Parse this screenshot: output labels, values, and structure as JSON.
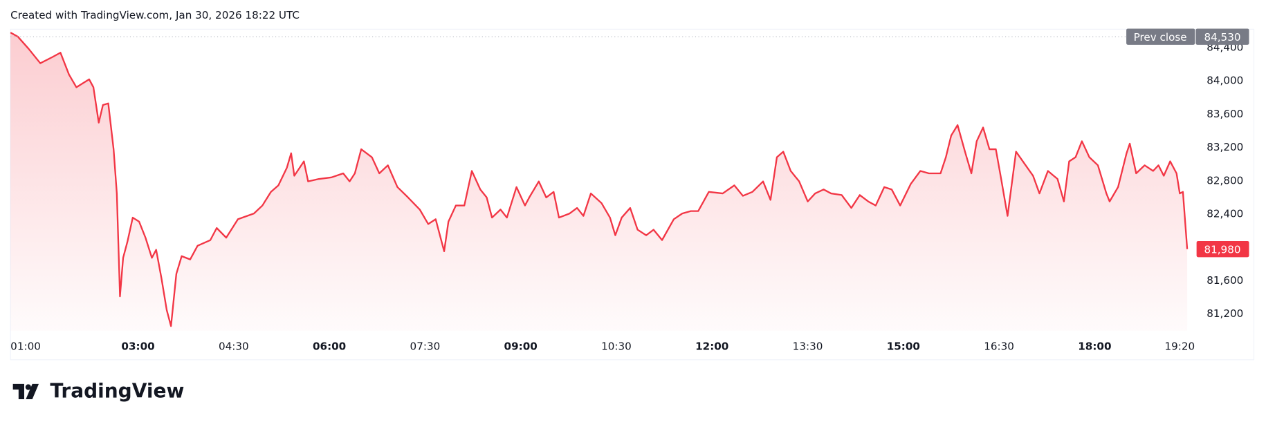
{
  "header": {
    "caption": "Created with TradingView.com, Jan 30, 2026 18:22 UTC"
  },
  "footer": {
    "brand": "TradingView"
  },
  "chart_data": {
    "type": "area",
    "color": "#f23645",
    "x": [
      "01:00",
      "01:07",
      "01:17",
      "01:28",
      "01:40",
      "01:47",
      "01:55",
      "02:02",
      "02:14",
      "02:18",
      "02:23",
      "02:27",
      "02:32",
      "02:37",
      "02:40",
      "02:43",
      "02:46",
      "02:50",
      "02:55",
      "03:01",
      "03:07",
      "03:13",
      "03:17",
      "03:22",
      "03:27",
      "03:31",
      "03:36",
      "03:41",
      "03:49",
      "03:56",
      "04:08",
      "04:14",
      "04:23",
      "04:34",
      "04:49",
      "04:57",
      "05:05",
      "05:12",
      "05:20",
      "05:24",
      "05:27",
      "05:36",
      "05:40",
      "05:50",
      "06:02",
      "06:13",
      "06:19",
      "06:24",
      "06:30",
      "06:40",
      "06:47",
      "06:55",
      "07:04",
      "07:14",
      "07:25",
      "07:33",
      "07:40",
      "07:48",
      "07:52",
      "07:59",
      "08:07",
      "08:14",
      "08:22",
      "08:28",
      "08:33",
      "08:41",
      "08:47",
      "08:56",
      "09:04",
      "09:08",
      "09:17",
      "09:24",
      "09:31",
      "09:36",
      "09:46",
      "09:53",
      "09:59",
      "10:06",
      "10:16",
      "10:24",
      "10:29",
      "10:35",
      "10:43",
      "10:50",
      "10:58",
      "11:05",
      "11:13",
      "11:24",
      "11:32",
      "11:40",
      "11:47",
      "11:57",
      "12:10",
      "12:21",
      "12:29",
      "12:38",
      "12:48",
      "12:55",
      "13:01",
      "13:07",
      "13:14",
      "13:22",
      "13:30",
      "13:37",
      "13:45",
      "13:52",
      "14:02",
      "14:11",
      "14:19",
      "14:27",
      "14:34",
      "14:42",
      "14:49",
      "14:57",
      "15:07",
      "15:16",
      "15:24",
      "15:35",
      "15:40",
      "15:45",
      "15:51",
      "15:58",
      "16:04",
      "16:09",
      "16:15",
      "16:21",
      "16:27",
      "16:32",
      "16:38",
      "16:46",
      "16:55",
      "17:02",
      "17:08",
      "17:16",
      "17:25",
      "17:31",
      "17:36",
      "17:42",
      "17:48",
      "17:55",
      "18:03",
      "18:11",
      "18:14",
      "18:22",
      "18:30",
      "18:33",
      "18:39",
      "18:47",
      "18:55",
      "19:00",
      "19:05",
      "19:11",
      "19:17",
      "19:20",
      "19:23",
      "19:27"
    ],
    "series": [
      {
        "values": [
          84580,
          84530,
          84386,
          84212,
          84290,
          84338,
          84077,
          83923,
          84019,
          83923,
          83498,
          83710,
          83730,
          83179,
          82648,
          81412,
          81875,
          82068,
          82358,
          82310,
          82117,
          81875,
          81972,
          81634,
          81248,
          81055,
          81682,
          81895,
          81856,
          82020,
          82088,
          82233,
          82117,
          82339,
          82407,
          82503,
          82667,
          82745,
          82957,
          83131,
          82860,
          83034,
          82793,
          82822,
          82841,
          82889,
          82793,
          82889,
          83179,
          83083,
          82889,
          82986,
          82725,
          82600,
          82455,
          82281,
          82339,
          81953,
          82310,
          82503,
          82503,
          82918,
          82696,
          82600,
          82358,
          82455,
          82358,
          82725,
          82503,
          82600,
          82793,
          82600,
          82667,
          82358,
          82407,
          82474,
          82378,
          82648,
          82532,
          82358,
          82146,
          82358,
          82474,
          82213,
          82146,
          82213,
          82088,
          82339,
          82407,
          82436,
          82436,
          82667,
          82648,
          82745,
          82619,
          82667,
          82793,
          82571,
          83083,
          83150,
          82918,
          82793,
          82552,
          82648,
          82696,
          82648,
          82629,
          82474,
          82629,
          82552,
          82503,
          82725,
          82696,
          82503,
          82764,
          82918,
          82889,
          82889,
          83083,
          83343,
          83469,
          83150,
          82889,
          83276,
          83440,
          83179,
          83179,
          82822,
          82378,
          83150,
          82986,
          82860,
          82648,
          82918,
          82822,
          82552,
          83034,
          83083,
          83276,
          83083,
          82986,
          82648,
          82552,
          82725,
          83131,
          83247,
          82889,
          82986,
          82918,
          82986,
          82860,
          83034,
          82889,
          82648,
          82667,
          81980
        ]
      }
    ],
    "xlim": [
      "01:00",
      "19:29"
    ],
    "xticks": [
      "01:00",
      "03:00",
      "04:30",
      "06:00",
      "07:30",
      "09:00",
      "10:30",
      "12:00",
      "13:30",
      "15:00",
      "16:30",
      "18:00",
      "19:20"
    ],
    "ylim": [
      81000,
      84620
    ],
    "yticks": [
      {
        "value": 81200,
        "label": "81,200"
      },
      {
        "value": 81600,
        "label": "81,600"
      },
      {
        "value": 82400,
        "label": "82,400"
      },
      {
        "value": 82800,
        "label": "82,800"
      },
      {
        "value": 83200,
        "label": "83,200"
      },
      {
        "value": 83600,
        "label": "83,600"
      },
      {
        "value": 84000,
        "label": "84,000"
      },
      {
        "value": 84400,
        "label": "84,400"
      }
    ],
    "prev_close": {
      "label": "Prev close",
      "value": 84530,
      "value_label": "84,530"
    },
    "last_price": {
      "value": 81980,
      "label": "81,980"
    }
  }
}
